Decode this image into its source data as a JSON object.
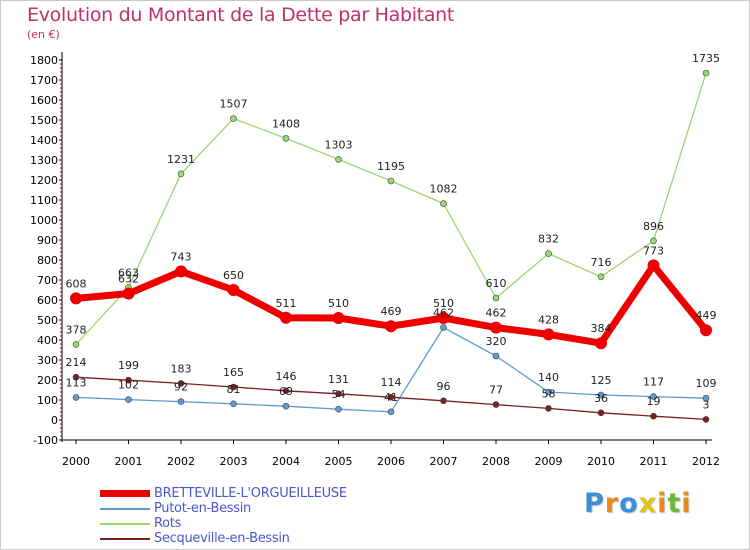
{
  "title": "Evolution du Montant de la Dette par Habitant",
  "unit": "(en €)",
  "logo": {
    "letters": [
      "P",
      "r",
      "o",
      "x",
      "i",
      "t",
      "i"
    ],
    "colors": [
      "#3a8fd8",
      "#e98a1b",
      "#3a8fd8",
      "#e2c21d",
      "#e98a1b",
      "#6fb83a",
      "#e98a1b"
    ]
  },
  "chart_data": {
    "type": "line",
    "x": [
      "2000",
      "2001",
      "2002",
      "2003",
      "2004",
      "2005",
      "2006",
      "2007",
      "2008",
      "2009",
      "2010",
      "2011",
      "2012"
    ],
    "ylim": [
      -100,
      1800
    ],
    "yticks": [
      "-100",
      "0",
      "100",
      "200",
      "300",
      "400",
      "500",
      "600",
      "700",
      "800",
      "900",
      "1000",
      "1100",
      "1200",
      "1300",
      "1400",
      "1500",
      "1600",
      "1700",
      "1800"
    ],
    "grid": false,
    "legend_position": "bottom-left",
    "series": [
      {
        "name": "BRETTEVILLE-L'ORGUEILLEUSE",
        "color": "#ee0000",
        "bold": true,
        "values": [
          608,
          632,
          743,
          650,
          511,
          510,
          469,
          510,
          462,
          428,
          384,
          773,
          449
        ],
        "labels": [
          "608",
          "632",
          "743",
          "650",
          "511",
          "510",
          "469",
          "510",
          "462",
          "428",
          "384",
          "773",
          "449"
        ]
      },
      {
        "name": "Putot-en-Bessin",
        "color": "#5e9bd2",
        "bold": false,
        "values": [
          113,
          102,
          92,
          81,
          69,
          54,
          41,
          462,
          320,
          140,
          125,
          117,
          109
        ],
        "labels": [
          "113",
          "102",
          "92",
          "81",
          "69",
          "54",
          "41",
          "462",
          "320",
          "140",
          "125",
          "117",
          "109"
        ]
      },
      {
        "name": "Rots",
        "color": "#9ad870",
        "bold": false,
        "values": [
          378,
          663,
          1231,
          1507,
          1408,
          1303,
          1195,
          1082,
          610,
          832,
          716,
          896,
          1735
        ],
        "labels": [
          "378",
          "663",
          "1231",
          "1507",
          "1408",
          "1303",
          "1195",
          "1082",
          "610",
          "832",
          "716",
          "896",
          "1735"
        ]
      },
      {
        "name": "Secqueville-en-Bessin",
        "color": "#7a2020",
        "bold": false,
        "values": [
          214,
          199,
          183,
          165,
          146,
          131,
          114,
          96,
          77,
          58,
          36,
          19,
          3
        ],
        "labels": [
          "214",
          "199",
          "183",
          "165",
          "146",
          "131",
          "114",
          "96",
          "77",
          "58",
          "36",
          "19",
          "3"
        ]
      }
    ]
  }
}
